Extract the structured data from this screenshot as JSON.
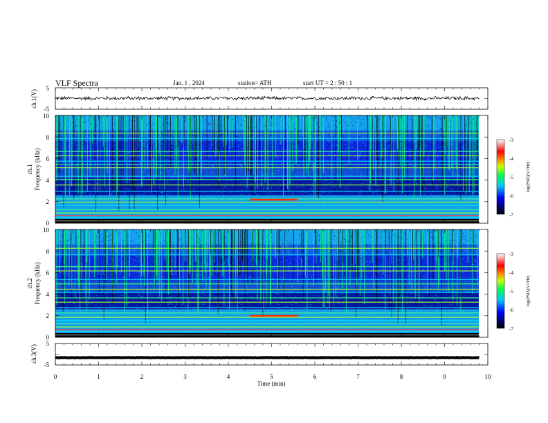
{
  "header": {
    "title": "VLF  Spectra",
    "date": "Jan.  1  , 2024",
    "station": "station= ATH",
    "start": "start  UT  =   2  : 50 : 1"
  },
  "chart_data": [
    {
      "type": "line",
      "ylabel": "ch.1(V)",
      "ylim": [
        -5,
        5
      ],
      "ytick_labels": [
        "5",
        "-5"
      ],
      "xlim": [
        0,
        10
      ],
      "series": [
        {
          "baseline": 0.1,
          "noise_amplitude": 1.0,
          "x_end": 9.8
        }
      ]
    },
    {
      "type": "heatmap",
      "ylabel": "ch.1",
      "ylabel2": "Frequency  (kHz)",
      "ylim": [
        0,
        10
      ],
      "ytick_labels": [
        "0",
        "2",
        "4",
        "6",
        "8",
        "10"
      ],
      "xlim": [
        0,
        9.8
      ],
      "colorbar": {
        "label": "log(PSD)(V²/Hz)",
        "range": [
          -7,
          -3
        ],
        "tick_labels": [
          "-3",
          "-4",
          "-5",
          "-6",
          "-7"
        ]
      },
      "bands_khz": [
        0.3,
        0.6,
        1.0,
        1.3,
        1.7,
        2.0,
        2.3,
        3.0,
        3.6,
        4.1,
        4.4,
        5.2,
        5.5,
        5.8,
        6.3,
        6.7,
        7.9,
        8.4
      ],
      "bright_segment": {
        "x_start": 4.5,
        "x_end": 5.6,
        "freq_khz": 2.2
      }
    },
    {
      "type": "heatmap",
      "ylabel": "ch.2",
      "ylabel2": "Frequency  (kHz)",
      "ylim": [
        0,
        10
      ],
      "ytick_labels": [
        "0",
        "2",
        "4",
        "6",
        "8",
        "10"
      ],
      "xlim": [
        0,
        9.8
      ],
      "colorbar": {
        "label": "log(PSD)(V²/Hz)",
        "range": [
          -7,
          -3
        ],
        "tick_labels": [
          "-3",
          "-4",
          "-5",
          "-6",
          "-7"
        ]
      },
      "bands_khz": [
        0.3,
        0.6,
        1.0,
        1.3,
        1.6,
        1.9,
        2.3,
        2.8,
        3.3,
        3.7,
        4.2,
        4.5,
        5.0,
        5.4,
        6.2,
        6.6,
        7.7,
        8.3
      ],
      "bright_segment": {
        "x_start": 4.5,
        "x_end": 5.6,
        "freq_khz": 2.0
      }
    },
    {
      "type": "line",
      "ylabel": "ch.3(V)",
      "ylim": [
        -5,
        5
      ],
      "ytick_labels": [
        "5",
        "-5"
      ],
      "xlim": [
        0,
        10
      ],
      "xlabel": "Time  (min)",
      "xtick_labels": [
        "0",
        "1",
        "2",
        "3",
        "4",
        "5",
        "6",
        "7",
        "8",
        "9",
        "10"
      ],
      "series": [
        {
          "baseline": -1.6,
          "noise_amplitude": 0.1,
          "x_end": 9.8
        }
      ]
    }
  ]
}
